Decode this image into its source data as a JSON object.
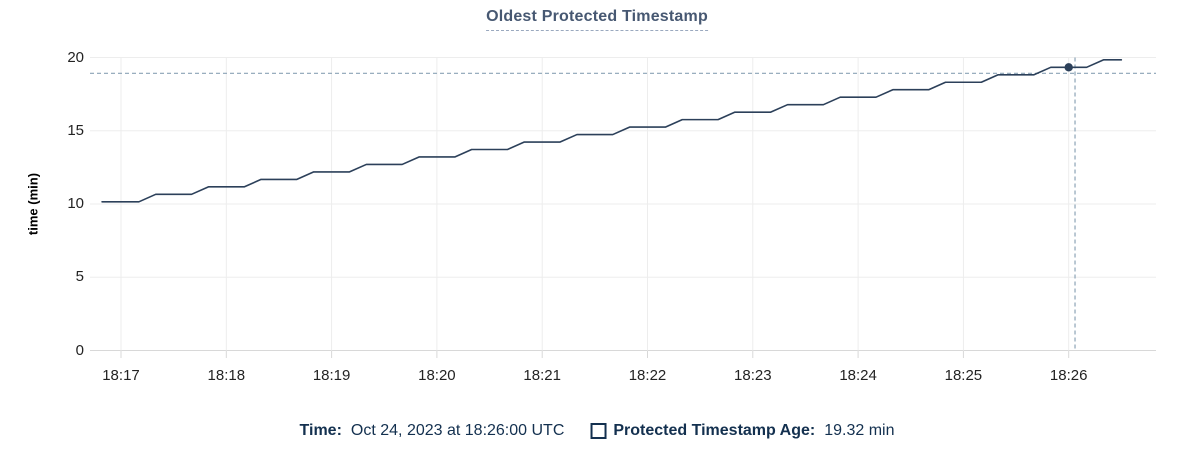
{
  "chart": {
    "title": "Oldest Protected Timestamp"
  },
  "chart_data": {
    "type": "line",
    "title": "Oldest Protected Timestamp",
    "xlabel": "",
    "ylabel": "time (min)",
    "ylim": [
      0,
      20
    ],
    "y_ticks": [
      0,
      5,
      10,
      15,
      20
    ],
    "x_unit": "minutes since 18:16:00 UTC",
    "xlim": [
      0.71,
      10.83
    ],
    "x_ticks": [
      {
        "t": 1,
        "label": "18:17"
      },
      {
        "t": 2,
        "label": "18:18"
      },
      {
        "t": 3,
        "label": "18:19"
      },
      {
        "t": 4,
        "label": "18:20"
      },
      {
        "t": 5,
        "label": "18:21"
      },
      {
        "t": 6,
        "label": "18:22"
      },
      {
        "t": 7,
        "label": "18:23"
      },
      {
        "t": 8,
        "label": "18:24"
      },
      {
        "t": 9,
        "label": "18:25"
      },
      {
        "t": 10,
        "label": "18:26"
      }
    ],
    "grid": true,
    "legend_position": "bottom",
    "series": [
      {
        "name": "Protected Timestamp Age",
        "unit": "min",
        "color": "#2c405a",
        "points": [
          [
            0.82,
            10.15
          ],
          [
            1.17,
            10.15
          ],
          [
            1.33,
            10.66
          ],
          [
            1.67,
            10.66
          ],
          [
            1.83,
            11.17
          ],
          [
            2.17,
            11.17
          ],
          [
            2.33,
            11.68
          ],
          [
            2.67,
            11.68
          ],
          [
            2.83,
            12.19
          ],
          [
            3.17,
            12.19
          ],
          [
            3.33,
            12.7
          ],
          [
            3.67,
            12.7
          ],
          [
            3.83,
            13.21
          ],
          [
            4.17,
            13.21
          ],
          [
            4.33,
            13.72
          ],
          [
            4.67,
            13.72
          ],
          [
            4.83,
            14.23
          ],
          [
            5.17,
            14.23
          ],
          [
            5.33,
            14.74
          ],
          [
            5.67,
            14.74
          ],
          [
            5.83,
            15.25
          ],
          [
            6.17,
            15.25
          ],
          [
            6.33,
            15.76
          ],
          [
            6.67,
            15.76
          ],
          [
            6.83,
            16.27
          ],
          [
            7.17,
            16.27
          ],
          [
            7.33,
            16.78
          ],
          [
            7.67,
            16.78
          ],
          [
            7.83,
            17.29
          ],
          [
            8.17,
            17.29
          ],
          [
            8.33,
            17.8
          ],
          [
            8.67,
            17.8
          ],
          [
            8.83,
            18.31
          ],
          [
            9.17,
            18.31
          ],
          [
            9.33,
            18.82
          ],
          [
            9.67,
            18.82
          ],
          [
            9.83,
            19.33
          ],
          [
            10.17,
            19.33
          ],
          [
            10.33,
            19.84
          ],
          [
            10.5,
            19.84
          ]
        ]
      }
    ],
    "hover": {
      "time_label": "18:26:00",
      "value": 19.32,
      "crosshair_x": 10.06,
      "crosshair_y": 18.92,
      "dot": [
        10.0,
        19.33
      ]
    }
  },
  "footer": {
    "time_label": "Time:",
    "time_value": "Oct 24, 2023 at 18:26:00 UTC",
    "age_label": "Protected Timestamp Age:",
    "age_value": "19.32 min"
  },
  "colors": {
    "title": "#475872",
    "series_line": "#2c405a",
    "crosshair": "#8ba3b6",
    "gridline": "#ededed",
    "axis_line": "#d8d8d8",
    "footer_text": "#13304f"
  }
}
